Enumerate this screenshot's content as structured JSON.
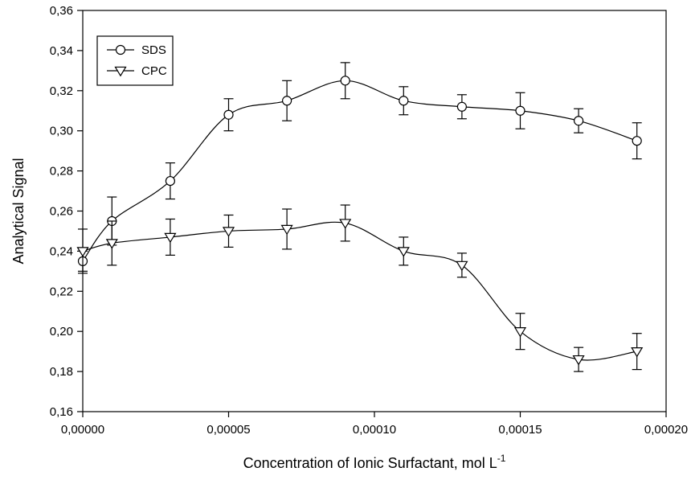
{
  "chart_data": {
    "type": "line",
    "title": "",
    "xlabel": "Concentration of Ionic Surfactant, mol L",
    "xlabel_superscript": "-1",
    "ylabel": "Analytical Signal",
    "xlim": [
      0,
      0.0002
    ],
    "ylim": [
      0.16,
      0.36
    ],
    "x_ticks": [
      0,
      5e-05,
      0.0001,
      0.00015,
      0.0002
    ],
    "x_tick_labels": [
      "0,00000",
      "0,00005",
      "0,00010",
      "0,00015",
      "0,00020"
    ],
    "y_ticks": [
      0.16,
      0.18,
      0.2,
      0.22,
      0.24,
      0.26,
      0.28,
      0.3,
      0.32,
      0.34,
      0.36
    ],
    "y_tick_labels": [
      "0,16",
      "0,18",
      "0,20",
      "0,22",
      "0,24",
      "0,26",
      "0,28",
      "0,30",
      "0,32",
      "0,34",
      "0,36"
    ],
    "grid": false,
    "legend_position": "top-left",
    "series": [
      {
        "name": "SDS",
        "marker": "circle",
        "x": [
          0,
          1e-05,
          3e-05,
          5e-05,
          7e-05,
          9e-05,
          0.00011,
          0.00013,
          0.00015,
          0.00017,
          0.00019
        ],
        "y": [
          0.235,
          0.255,
          0.275,
          0.308,
          0.315,
          0.325,
          0.315,
          0.312,
          0.31,
          0.305,
          0.295
        ],
        "err": [
          0.005,
          0.012,
          0.009,
          0.008,
          0.01,
          0.009,
          0.007,
          0.006,
          0.009,
          0.006,
          0.009
        ]
      },
      {
        "name": "CPC",
        "marker": "triangle-down",
        "x": [
          0,
          1e-05,
          3e-05,
          5e-05,
          7e-05,
          9e-05,
          0.00011,
          0.00013,
          0.00015,
          0.00017,
          0.00019
        ],
        "y": [
          0.24,
          0.244,
          0.247,
          0.25,
          0.251,
          0.254,
          0.24,
          0.233,
          0.2,
          0.186,
          0.19
        ],
        "err": [
          0.011,
          0.011,
          0.009,
          0.008,
          0.01,
          0.009,
          0.007,
          0.006,
          0.009,
          0.006,
          0.009
        ]
      }
    ]
  }
}
